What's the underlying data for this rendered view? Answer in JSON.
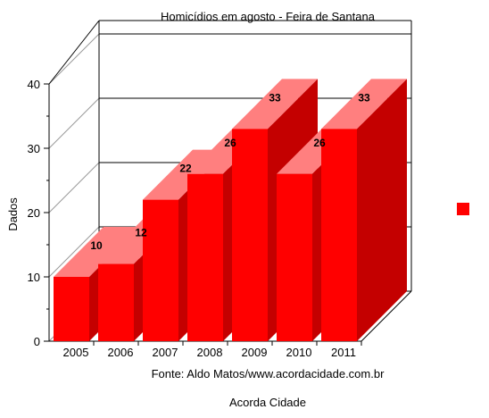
{
  "chart_data": {
    "type": "bar",
    "title": "Homicídios em agosto - Feira de Santana",
    "ylabel": "Dados",
    "xlabel": "",
    "categories": [
      "2005",
      "2006",
      "2007",
      "2008",
      "2009",
      "2010",
      "2011"
    ],
    "series": [
      {
        "values": [
          10,
          12,
          22,
          26,
          33,
          26,
          33
        ]
      }
    ],
    "data_labels": [
      "10",
      "12",
      "22",
      "26",
      "33",
      "26",
      "33"
    ],
    "ylim": [
      0,
      40
    ],
    "yticks": [
      "0",
      "10",
      "20",
      "30",
      "40"
    ],
    "grid": true,
    "three_d": true,
    "legend_position": "right",
    "colors": {
      "bar_front": "#ff0000",
      "bar_top": "#ff7f7f",
      "bar_side": "#c40000"
    },
    "footer": "Fonte: Aldo Matos/www.acordacidade.com.br",
    "caption": "Acorda Cidade"
  }
}
